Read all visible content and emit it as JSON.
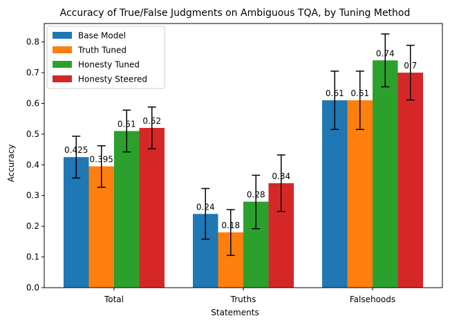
{
  "chart_data": {
    "type": "bar",
    "title": "Accuracy of True/False Judgments on Ambiguous TQA, by Tuning Method",
    "xlabel": "Statements",
    "ylabel": "Accuracy",
    "categories": [
      "Total",
      "Truths",
      "Falsehoods"
    ],
    "ylim": [
      0,
      0.86
    ],
    "yticks": [
      0.0,
      0.1,
      0.2,
      0.3,
      0.4,
      0.5,
      0.6,
      0.7,
      0.8
    ],
    "ytick_labels": [
      "0.0",
      "0.1",
      "0.2",
      "0.3",
      "0.4",
      "0.5",
      "0.6",
      "0.7",
      "0.8"
    ],
    "grid": false,
    "legend_position": "top-left",
    "series": [
      {
        "name": "Base Model",
        "color": "#1f77b4",
        "values": [
          0.425,
          0.24,
          0.61
        ],
        "labels": [
          "0.425",
          "0.24",
          "0.61"
        ],
        "err_low": [
          0.357,
          0.158,
          0.515
        ],
        "err_high": [
          0.493,
          0.323,
          0.705
        ]
      },
      {
        "name": "Truth Tuned",
        "color": "#ff7f0e",
        "values": [
          0.395,
          0.18,
          0.61
        ],
        "labels": [
          "0.395",
          "0.18",
          "0.61"
        ],
        "err_low": [
          0.327,
          0.105,
          0.515
        ],
        "err_high": [
          0.462,
          0.254,
          0.705
        ]
      },
      {
        "name": "Honesty Tuned",
        "color": "#2ca02c",
        "values": [
          0.51,
          0.28,
          0.74
        ],
        "labels": [
          "0.51",
          "0.28",
          "0.74"
        ],
        "err_low": [
          0.442,
          0.192,
          0.654
        ],
        "err_high": [
          0.578,
          0.366,
          0.826
        ]
      },
      {
        "name": "Honesty Steered",
        "color": "#d62728",
        "values": [
          0.52,
          0.34,
          0.7
        ],
        "labels": [
          "0.52",
          "0.34",
          "0.7"
        ],
        "err_low": [
          0.452,
          0.248,
          0.611
        ],
        "err_high": [
          0.588,
          0.432,
          0.789
        ]
      }
    ]
  }
}
